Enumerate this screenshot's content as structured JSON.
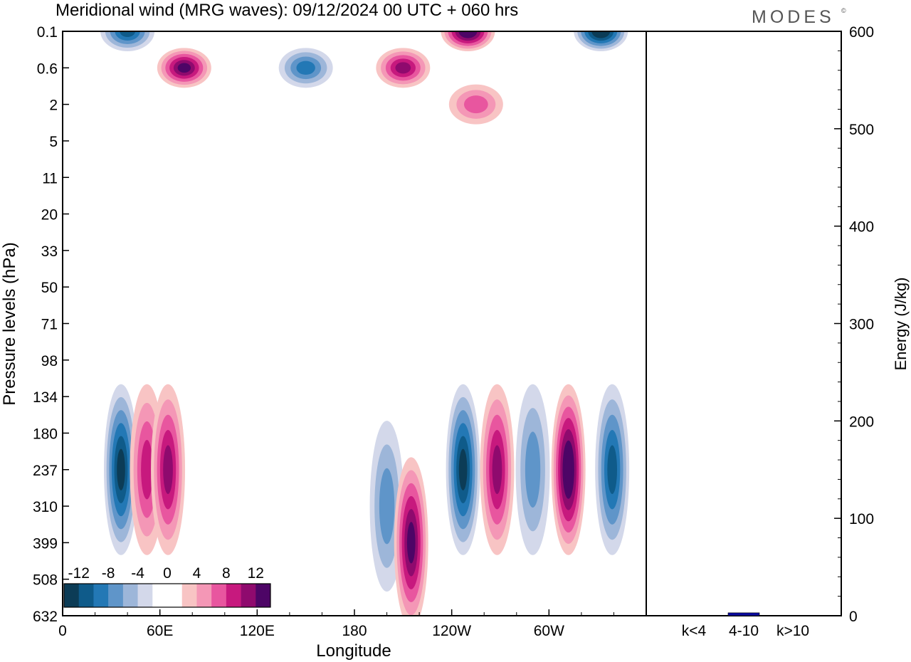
{
  "title": "Meridional wind (MRG waves):  09/12/2024  00 UTC  + 060 hrs",
  "brand": "MODES",
  "brand_mark": "©",
  "chart_data": [
    {
      "type": "heatmap",
      "title": "Meridional wind (MRG waves):  09/12/2024  00 UTC  + 060 hrs",
      "xlabel": "Longitude",
      "ylabel": "Pressure levels (hPa)",
      "x_ticks": [
        "0",
        "60E",
        "120E",
        "180",
        "120W",
        "60W"
      ],
      "x_tick_degrees": [
        0,
        60,
        120,
        180,
        240,
        300
      ],
      "xlim": [
        0,
        360
      ],
      "y_ticks": [
        "0.1",
        "0.6",
        "2",
        "5",
        "11",
        "20",
        "33",
        "50",
        "71",
        "98",
        "134",
        "180",
        "237",
        "310",
        "399",
        "508",
        "632"
      ],
      "y_direction": "pressure increases downward",
      "colorbar": {
        "labels": [
          "-12",
          "-8",
          "-4",
          "0",
          "4",
          "8",
          "12"
        ],
        "colors": [
          "#0c3c56",
          "#0f5b8a",
          "#2378b5",
          "#5f95c9",
          "#9db6d9",
          "#d3d8ea",
          "#ffffff",
          "#ffffff",
          "#f8c4c4",
          "#f497b6",
          "#e8569f",
          "#c7197e",
          "#8f0a6e",
          "#4d0566"
        ]
      },
      "anomalies": [
        {
          "lon": 36,
          "level": "237",
          "value": -11
        },
        {
          "lon": 52,
          "level": "237",
          "value": 7
        },
        {
          "lon": 65,
          "level": "237",
          "value": 9
        },
        {
          "lon": 200,
          "level": "310",
          "value": -6
        },
        {
          "lon": 215,
          "level": "399",
          "value": 11
        },
        {
          "lon": 247,
          "level": "237",
          "value": -12
        },
        {
          "lon": 268,
          "level": "237",
          "value": 10
        },
        {
          "lon": 290,
          "level": "237",
          "value": -5
        },
        {
          "lon": 312,
          "level": "237",
          "value": 13
        },
        {
          "lon": 339,
          "level": "237",
          "value": -10
        },
        {
          "lon": 75,
          "level": "0.6",
          "value": 12
        },
        {
          "lon": 40,
          "level": "0.1",
          "value": -9
        },
        {
          "lon": 250,
          "level": "0.1",
          "value": 13
        },
        {
          "lon": 332,
          "level": "0.1",
          "value": -13
        },
        {
          "lon": 150,
          "level": "0.6",
          "value": -7
        },
        {
          "lon": 210,
          "level": "0.6",
          "value": 9
        },
        {
          "lon": 255,
          "level": "2",
          "value": 6
        }
      ]
    },
    {
      "type": "bar",
      "ylabel": "Energy (J/kg)",
      "categories": [
        "k<4",
        "4-10",
        "k>10"
      ],
      "values": [
        0,
        3,
        0
      ],
      "ylim": [
        0,
        600
      ],
      "y_ticks": [
        "0",
        "100",
        "200",
        "300",
        "400",
        "500",
        "600"
      ],
      "bar_color": "#0a0a9e"
    }
  ]
}
